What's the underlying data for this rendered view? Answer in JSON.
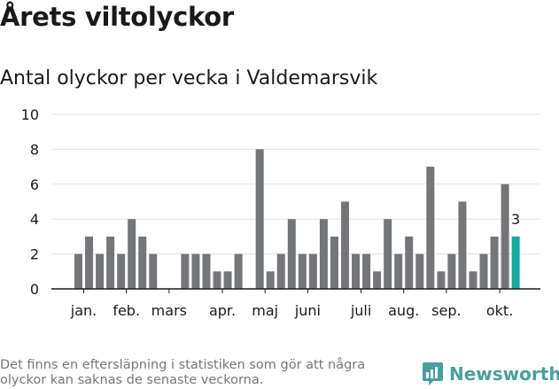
{
  "title": "Årets viltolyckor",
  "subtitle": "Antal olyckor per vecka i Valdemarsvik",
  "footnote": "Det finns en eftersläpning i statistiken som gör att några olyckor kan saknas de senaste veckorna.",
  "brand": {
    "name": "Newsworthy",
    "icon": "bar-chart-speech-bubble-icon"
  },
  "colors": {
    "bar": "#75767a",
    "highlight": "#16a99c",
    "grid": "#e3e3e3",
    "axis": "#1a1a1a",
    "text": "#1a1a1a",
    "brand": "#49a09a"
  },
  "chart_data": {
    "type": "bar",
    "x": [
      1,
      2,
      3,
      4,
      5,
      6,
      7,
      8,
      9,
      10,
      11,
      12,
      13,
      14,
      15,
      16,
      17,
      18,
      19,
      20,
      21,
      22,
      23,
      24,
      25,
      26,
      27,
      28,
      29,
      30,
      31,
      32,
      33,
      34,
      35,
      36,
      37,
      38,
      39,
      40,
      41,
      42
    ],
    "values": [
      2,
      3,
      2,
      3,
      2,
      4,
      3,
      2,
      0,
      0,
      2,
      2,
      2,
      1,
      1,
      2,
      0,
      8,
      1,
      2,
      4,
      2,
      2,
      4,
      3,
      5,
      2,
      2,
      1,
      4,
      2,
      3,
      2,
      7,
      1,
      2,
      5,
      1,
      2,
      3,
      6,
      3
    ],
    "month_labels": [
      {
        "label": "jan.",
        "x": 1.5
      },
      {
        "label": "feb.",
        "x": 5.5
      },
      {
        "label": "mars",
        "x": 9.5
      },
      {
        "label": "apr.",
        "x": 14.5
      },
      {
        "label": "maj",
        "x": 18.5
      },
      {
        "label": "juni",
        "x": 22.5
      },
      {
        "label": "juli",
        "x": 27.5
      },
      {
        "label": "aug.",
        "x": 31.5
      },
      {
        "label": "sep.",
        "x": 35.5
      },
      {
        "label": "okt.",
        "x": 40.5
      }
    ],
    "yticks": [
      0,
      2,
      4,
      6,
      8,
      10
    ],
    "ylim": [
      0,
      10
    ],
    "highlight_last": true,
    "data_label": {
      "index": 41,
      "text": "3"
    },
    "grid": true
  }
}
